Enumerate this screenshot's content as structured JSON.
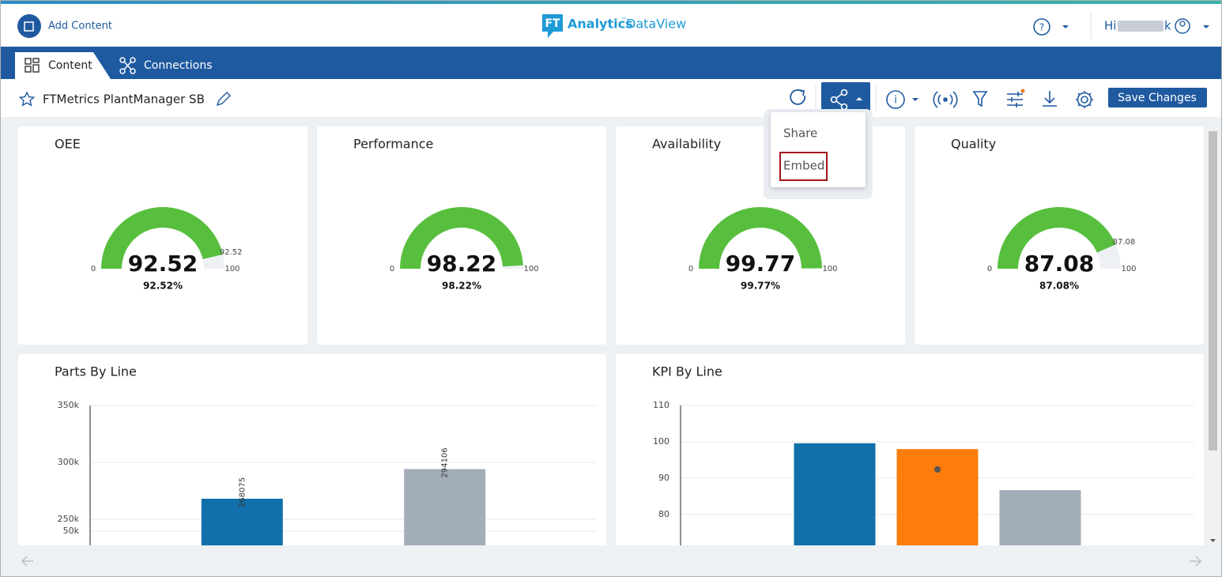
{
  "header": {
    "add_content": "Add Content",
    "logo_badge": "FT",
    "logo_name": "Analytics",
    "logo_tm": "™",
    "logo_product": "DataView",
    "greeting": "Hi",
    "user_end": "k"
  },
  "tabs": [
    "Content",
    "Connections"
  ],
  "toolbar": {
    "title": "FTMetrics PlantManager SB",
    "save": "Save Changes"
  },
  "share_menu": [
    "Share",
    "Embed"
  ],
  "chart_data": [
    {
      "type": "gauge",
      "title": "OEE",
      "value": 92.52,
      "value_label": "92.52%",
      "min": 0,
      "max": 100,
      "marker_label": true,
      "color": "#57bf3d"
    },
    {
      "type": "gauge",
      "title": "Performance",
      "value": 98.22,
      "value_label": "98.22%",
      "min": 0,
      "max": 100,
      "marker_label": false,
      "color": "#57bf3d"
    },
    {
      "type": "gauge",
      "title": "Availability",
      "value": 99.77,
      "value_label": "99.77%",
      "min": 0,
      "max": 100,
      "marker_label": false,
      "color": "#57bf3d"
    },
    {
      "type": "gauge",
      "title": "Quality",
      "value": 87.08,
      "value_label": "87.08%",
      "min": 0,
      "max": 100,
      "marker_label": true,
      "color": "#57bf3d"
    },
    {
      "type": "bar",
      "title": "Parts By Line",
      "categories": [
        null
      ],
      "series": [
        {
          "color": "#1170aa",
          "values": [
            268075
          ]
        },
        {
          "color": "#a3acb9",
          "values": [
            294106
          ]
        }
      ],
      "ylim": [
        37500,
        350000
      ],
      "y_break": [
        50000,
        250000
      ],
      "yticks": [
        {
          "value": 350000,
          "label": "350k"
        },
        {
          "value": 300000,
          "label": "300k"
        },
        {
          "value": 250000,
          "label": "250k"
        },
        {
          "value": 50000,
          "label": "50k"
        }
      ],
      "grid": true,
      "data_labels": true
    },
    {
      "type": "bar",
      "title": "KPI By Line",
      "categories": [
        null
      ],
      "series": [
        {
          "color": "#1170aa",
          "values": [
            99.6
          ]
        },
        {
          "color": "#fc7d0b",
          "values": [
            98.0
          ]
        },
        {
          "color": "#a3acb9",
          "values": [
            86.7
          ]
        },
        {
          "type": "point",
          "color": "#555555",
          "values": [
            92.4
          ]
        }
      ],
      "ylim": [
        71.5,
        110
      ],
      "yticks": [
        110,
        100,
        90,
        80
      ],
      "grid": true,
      "data_labels": false
    }
  ]
}
